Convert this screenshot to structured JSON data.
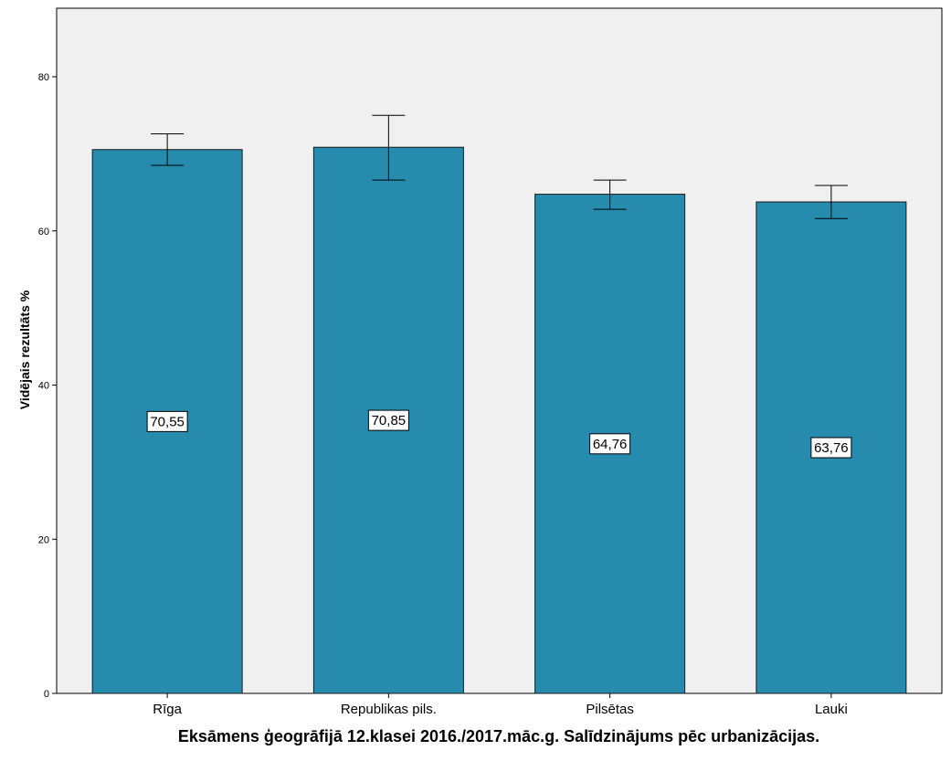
{
  "chart_data": {
    "type": "bar",
    "categories": [
      "Rīga",
      "Republikas pils.",
      "Pilsētas",
      "Lauki"
    ],
    "values": [
      70.55,
      70.85,
      64.76,
      63.76
    ],
    "value_labels": [
      "70,55",
      "70,85",
      "64,76",
      "63,76"
    ],
    "error_bars": [
      {
        "low": 68.5,
        "high": 72.6
      },
      {
        "low": 66.6,
        "high": 75.0
      },
      {
        "low": 62.8,
        "high": 66.6
      },
      {
        "low": 61.6,
        "high": 65.9
      }
    ],
    "title": "",
    "xlabel": "Eksāmens ģeogrāfijā 12.klasei 2016./2017.māc.g. Salīdzinājums pēc urbanizācijas.",
    "ylabel": "Vidējais rezultāts %",
    "ylim": [
      0,
      89
    ],
    "yticks": [
      0,
      20,
      40,
      60,
      80
    ],
    "grid": false,
    "colors": {
      "bar_fill": "#268BAD",
      "bar_stroke": "#1a1a1a",
      "plot_background": "#F0F0F0",
      "axis": "#000000"
    }
  }
}
